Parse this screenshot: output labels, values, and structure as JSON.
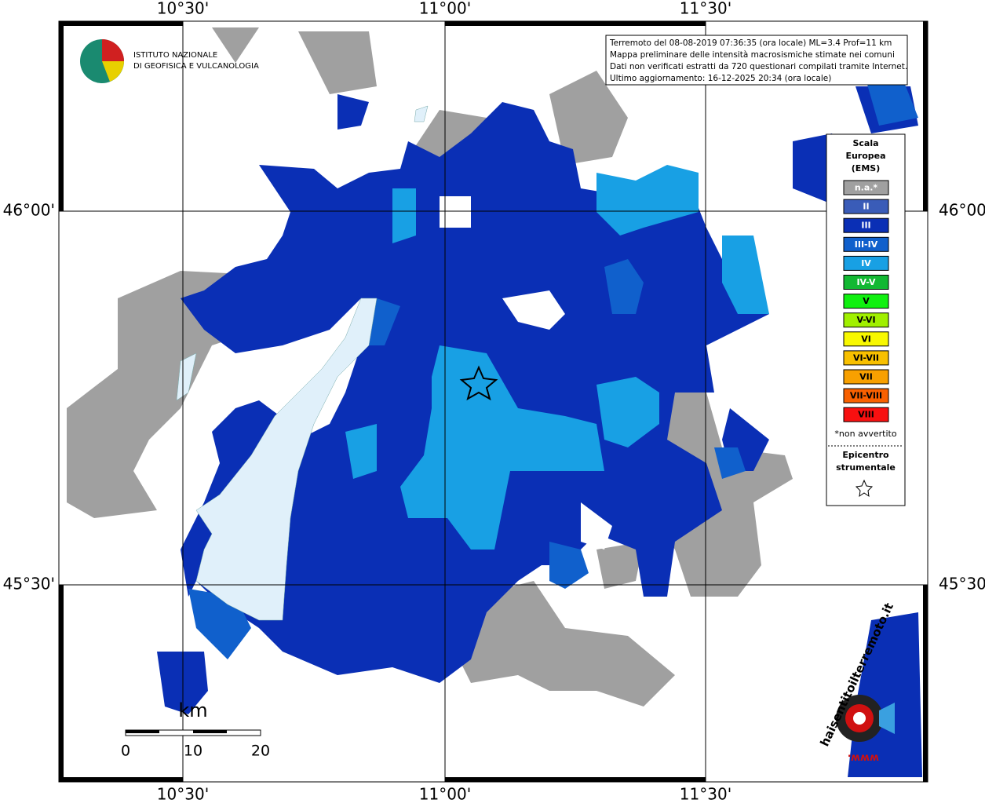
{
  "logo": [
    "ISTITUTO NAZIONALE",
    "DI GEOFISICA E VULCANOLOGIA"
  ],
  "info": [
    "Terremoto del 08-08-2019 07:36:35 (ora locale) ML=3.4 Prof=11 km",
    "Mappa preliminare delle intensità macrosismiche stimate nei comuni",
    "Dati non verificati estratti da 720 questionari compilati tramite Internet.",
    "Ultimo aggiornamento: 16-12-2025 20:34 (ora locale)"
  ],
  "lon_labels": [
    "10°30'",
    "11°00'",
    "11°30'"
  ],
  "lat_labels": [
    "46°00'",
    "45°30'"
  ],
  "legend": {
    "title": [
      "Scala",
      "Europea",
      "(EMS)"
    ],
    "items": [
      {
        "label": "n.a.*",
        "color": "#a0a0a0"
      },
      {
        "label": "II",
        "color": "#3a5cb8"
      },
      {
        "label": "III",
        "color": "#0a2fb5"
      },
      {
        "label": "III-IV",
        "color": "#1060cc"
      },
      {
        "label": "IV",
        "color": "#18a0e4"
      },
      {
        "label": "IV-V",
        "color": "#12b832"
      },
      {
        "label": "V",
        "color": "#10f010"
      },
      {
        "label": "V-VI",
        "color": "#a0f000"
      },
      {
        "label": "VI",
        "color": "#f8f800"
      },
      {
        "label": "VI-VII",
        "color": "#f8c000"
      },
      {
        "label": "VII",
        "color": "#f8a000"
      },
      {
        "label": "VII-VIII",
        "color": "#f86000"
      },
      {
        "label": "VIII",
        "color": "#f81010"
      }
    ],
    "note": "*non avvertito",
    "epicenter": [
      "Epicentro",
      "strumentale"
    ]
  },
  "scale_bar": {
    "unit": "km",
    "labels": [
      "0",
      "10",
      "20"
    ]
  },
  "watermark": [
    "haisentitoilterremoto.it",
    "www."
  ]
}
